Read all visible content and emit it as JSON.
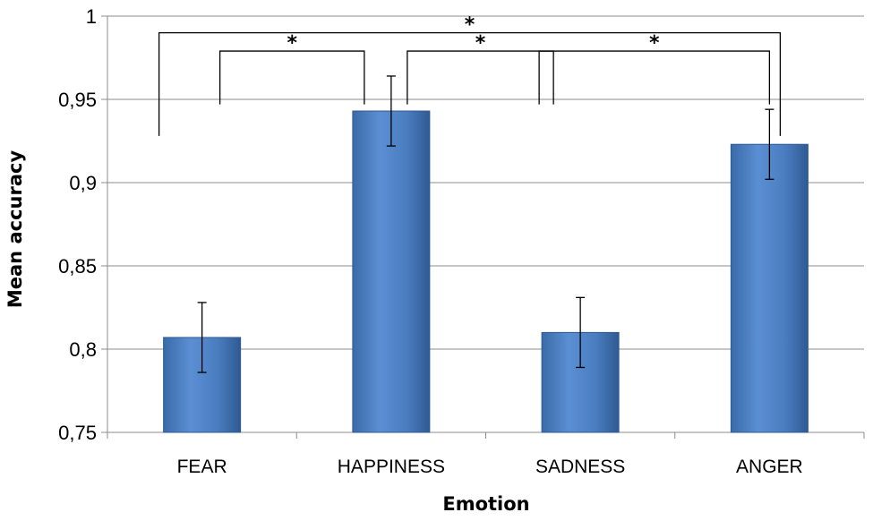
{
  "chart_data": {
    "type": "bar",
    "xlabel": "Emotion",
    "ylabel": "Mean accuracy",
    "categories": [
      "FEAR",
      "HAPPINESS",
      "SADNESS",
      "ANGER"
    ],
    "values": [
      0.807,
      0.943,
      0.81,
      0.923
    ],
    "error": [
      0.021,
      0.021,
      0.021,
      0.021
    ],
    "ylim": [
      0.75,
      1.0
    ],
    "yticks": [
      0.75,
      0.8,
      0.85,
      0.9,
      0.95,
      1.0
    ],
    "ytick_labels": [
      "0,75",
      "0,8",
      "0,85",
      "0,9",
      "0,95",
      "1"
    ],
    "grid": true,
    "bar_color": "#4f81bd",
    "significance": [
      {
        "from": 0,
        "to": 3,
        "label": "*"
      },
      {
        "from": 0,
        "to": 1,
        "label": "*"
      },
      {
        "from": 1,
        "to": 2,
        "label": "*"
      },
      {
        "from": 2,
        "to": 3,
        "label": "*"
      }
    ]
  }
}
